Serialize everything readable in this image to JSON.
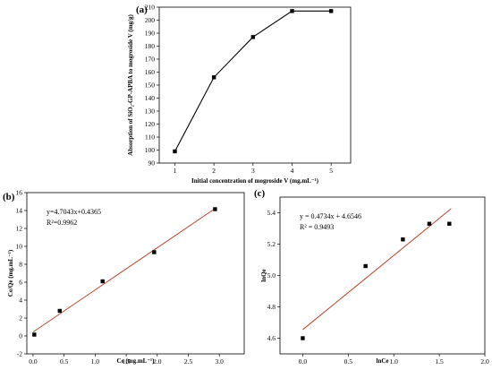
{
  "chart_data": [
    {
      "panel": "(a)",
      "type": "line",
      "xlabel": "Initial concentration of mogroside V (mg.mL⁻¹)",
      "ylabel": "Absorption of SiO₂-GP-APBA to mogroside V (mg/g)",
      "xlim": [
        0.6,
        5.5
      ],
      "ylim": [
        90,
        210
      ],
      "x_ticks": [
        1,
        2,
        3,
        4,
        5
      ],
      "y_ticks": [
        90,
        100,
        110,
        120,
        130,
        140,
        150,
        160,
        170,
        180,
        190,
        200,
        210
      ],
      "x": [
        1,
        2,
        3,
        4,
        5
      ],
      "y": [
        99,
        156,
        187,
        207,
        207
      ]
    },
    {
      "panel": "(b)",
      "type": "scatter",
      "xlabel": "Ce (mg.mL⁻¹)",
      "ylabel": "Ce/Qe (mg.mL⁻¹)",
      "xlim": [
        -0.1,
        3.4
      ],
      "ylim": [
        -2,
        16
      ],
      "x_ticks": [
        0.0,
        0.5,
        1.0,
        1.5,
        2.0,
        2.5,
        3.0
      ],
      "x_tick_labels": [
        "0.0",
        "0.5",
        "1.0",
        "1.5",
        "2.0",
        "2.5",
        "3.0"
      ],
      "y_ticks": [
        -2,
        0,
        2,
        4,
        6,
        8,
        10,
        12,
        14,
        16
      ],
      "x": [
        0.02,
        0.43,
        1.12,
        1.95,
        2.93
      ],
      "y": [
        0.15,
        2.8,
        6.1,
        9.35,
        14.15
      ],
      "fit": {
        "slope": 4.7043,
        "intercept": 0.4365,
        "x_range": [
          0.0,
          2.95
        ]
      },
      "equation": "y=4.7043x+0.4365",
      "r2_label": "R²=0.9962",
      "fit_color": "#b5462b"
    },
    {
      "panel": "(c)",
      "type": "scatter",
      "xlabel": "lnCe",
      "ylabel": "lnQe",
      "xlim": [
        -0.25,
        2.0
      ],
      "ylim": [
        4.5,
        5.5
      ],
      "x_ticks": [
        0.0,
        0.5,
        1.0,
        1.5,
        2.0
      ],
      "x_tick_labels": [
        "0.0",
        "0.5",
        "1.0",
        "1.5",
        "2.0"
      ],
      "y_ticks": [
        4.6,
        4.8,
        5.0,
        5.2,
        5.4
      ],
      "y_tick_labels": [
        "4.6",
        "4.8",
        "5.0",
        "5.2",
        "5.4"
      ],
      "x": [
        0.0,
        0.69,
        1.1,
        1.39,
        1.61
      ],
      "y": [
        4.6,
        5.06,
        5.23,
        5.33,
        5.33
      ],
      "fit": {
        "slope": 0.4734,
        "intercept": 4.6546,
        "x_range": [
          0.0,
          1.63
        ]
      },
      "equation": "y = 0.4734x + 4.6546",
      "r2_label": "R² = 0.9493",
      "fit_color": "#b5462b"
    }
  ]
}
